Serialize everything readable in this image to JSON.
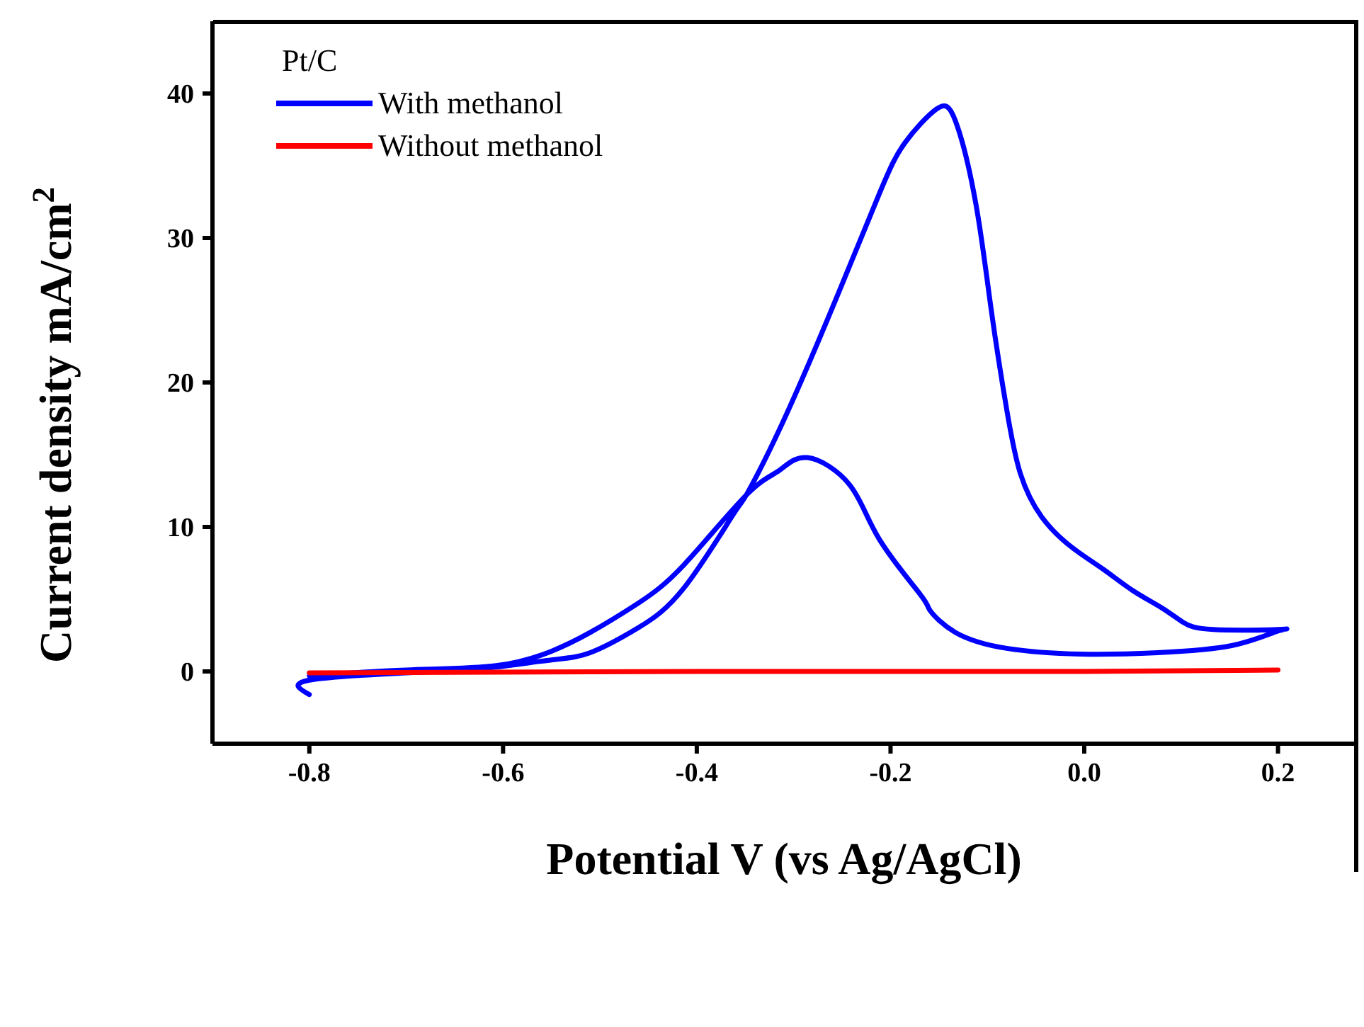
{
  "chart_data": {
    "type": "line",
    "xlabel": "Potential V (vs Ag/AgCl)",
    "ylabel": "Current density mA/cm$^{2}$",
    "legend_title": "Pt/C",
    "legend": "top left",
    "marker": "none",
    "line_style": "solid",
    "xlim": [
      -0.9,
      0.28
    ],
    "xticks": [
      -0.8,
      -0.6,
      -0.4,
      -0.2,
      {
        "value": 0,
        "label": "0.0"
      },
      0.2
    ],
    "ylim": [
      -5,
      45
    ],
    "yticks": [
      0,
      10,
      20,
      30,
      40
    ],
    "series": [
      {
        "name": "With methanol",
        "color": "#0000ff",
        "x": [
          -0.8,
          -0.8,
          -0.7,
          -0.65,
          -0.607,
          -0.55,
          -0.51,
          -0.461,
          -0.413,
          -0.363,
          -0.349,
          -0.315,
          -0.263,
          -0.212,
          -0.185,
          -0.153,
          -0.133,
          -0.112,
          -0.096,
          -0.08,
          -0.066,
          -0.044,
          -0.013,
          0.019,
          0.05,
          0.08,
          0.102,
          0.133,
          0.2,
          0.2,
          0.153,
          0.076,
          -0.003,
          -0.08,
          -0.133,
          -0.159,
          -0.169,
          -0.212,
          -0.242,
          -0.286,
          -0.315,
          -0.349,
          -0.413,
          -0.461,
          -0.51,
          -0.55,
          -0.607,
          -0.7,
          -0.8
        ],
        "values": [
          -1.6,
          -0.6,
          -0.1,
          0.1,
          0.3,
          0.8,
          1.3,
          3.0,
          5.8,
          10.8,
          12.2,
          16.7,
          24.7,
          33,
          36.6,
          38.9,
          38.1,
          32.4,
          25,
          18.1,
          13.7,
          10.7,
          8.6,
          7.1,
          5.6,
          4.4,
          3.4,
          2.9,
          2.9,
          2.8,
          1.8,
          1.3,
          1.2,
          1.6,
          2.7,
          4.2,
          5.3,
          9.2,
          12.9,
          14.8,
          13.9,
          12.2,
          7.4,
          4.7,
          2.7,
          1.4,
          0.4,
          0.1,
          -0.3
        ]
      },
      {
        "name": "Without methanol",
        "color": "#ff0000",
        "x": [
          -0.8,
          -0.4,
          0,
          0.2
        ],
        "values": [
          -0.1,
          0,
          0,
          0.1
        ]
      }
    ]
  }
}
